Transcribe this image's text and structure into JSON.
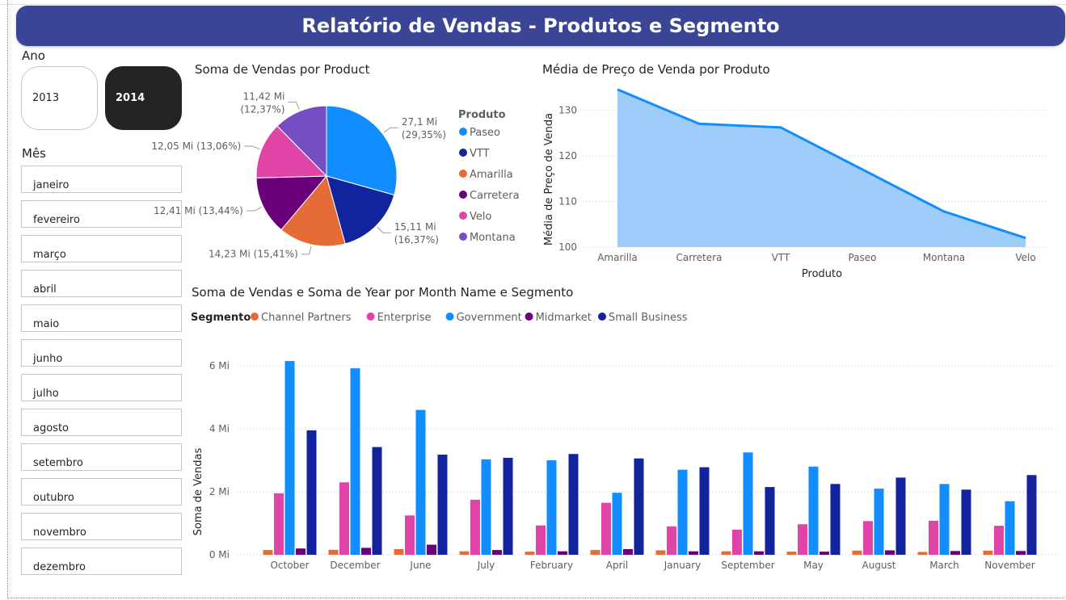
{
  "report_title": "Relatório de Vendas - Produtos e Segmento",
  "colors": {
    "banner": "#3b4596"
  },
  "year_slicer": {
    "title": "Ano",
    "options": [
      {
        "label": "2013",
        "selected": false
      },
      {
        "label": "2014",
        "selected": true
      }
    ]
  },
  "month_slicer": {
    "title": "Mês",
    "items": [
      "janeiro",
      "fevereiro",
      "março",
      "abril",
      "maio",
      "junho",
      "julho",
      "agosto",
      "setembro",
      "outubro",
      "novembro",
      "dezembro"
    ]
  },
  "chart_data": [
    {
      "type": "pie",
      "title": "Soma de Vendas por Product",
      "legend_title": "Produto",
      "legend_position": "right",
      "slices": [
        {
          "name": "Paseo",
          "value": 27.1,
          "label": "27,1 Mi (29,35%)",
          "color": "#118dff"
        },
        {
          "name": "VTT",
          "value": 15.11,
          "label": "15,11 Mi (16,37%)",
          "color": "#12239e"
        },
        {
          "name": "Amarilla",
          "value": 14.23,
          "label": "14,23 Mi (15,41%)",
          "color": "#e66c37"
        },
        {
          "name": "Carretera",
          "value": 12.41,
          "label": "12,41 Mi (13,44%)",
          "color": "#6b007b"
        },
        {
          "name": "Velo",
          "value": 12.05,
          "label": "12,05 Mi (13,06%)",
          "color": "#e044a7"
        },
        {
          "name": "Montana",
          "value": 11.42,
          "label": "11,42 Mi (12,37%)",
          "color": "#744ec2"
        }
      ]
    },
    {
      "type": "area",
      "title": "Média de Preço de Venda por Produto",
      "xlabel": "Produto",
      "ylabel": "Média de Preço de Venda",
      "categories": [
        "Amarilla",
        "Carretera",
        "VTT",
        "Paseo",
        "Montana",
        "Velo"
      ],
      "values": [
        134.5,
        127.0,
        126.2,
        117.0,
        107.8,
        102.0
      ],
      "ylim": [
        100,
        135
      ],
      "yticks": [
        100,
        110,
        120,
        130
      ],
      "grid": true,
      "color": "#118dff"
    },
    {
      "type": "bar",
      "title": "Soma de Vendas e Soma de Year por Month Name e Segmento",
      "legend_title": "Segmento",
      "legend_position": "top-left",
      "ylabel": "Soma de Vendas",
      "xlabel": "",
      "ylim": [
        0,
        6.5
      ],
      "yticks": [
        0,
        2,
        4,
        6
      ],
      "ytick_labels": [
        "0 Mi",
        "2 Mi",
        "4 Mi",
        "6 Mi"
      ],
      "grid": true,
      "categories": [
        "October",
        "December",
        "June",
        "July",
        "February",
        "April",
        "January",
        "September",
        "May",
        "August",
        "March",
        "November"
      ],
      "series": [
        {
          "name": "Channel Partners",
          "color": "#e66c37",
          "values": [
            0.15,
            0.16,
            0.18,
            0.11,
            0.1,
            0.15,
            0.14,
            0.11,
            0.1,
            0.13,
            0.09,
            0.13
          ]
        },
        {
          "name": "Enterprise",
          "color": "#e044a7",
          "values": [
            1.95,
            2.3,
            1.25,
            1.75,
            0.93,
            1.65,
            0.9,
            0.8,
            0.97,
            1.07,
            1.08,
            0.92
          ]
        },
        {
          "name": "Government",
          "color": "#118dff",
          "values": [
            6.15,
            5.92,
            4.6,
            3.03,
            3.0,
            1.97,
            2.7,
            3.25,
            2.8,
            2.1,
            2.25,
            1.7
          ]
        },
        {
          "name": "Midmarket",
          "color": "#6b007b",
          "values": [
            0.2,
            0.22,
            0.32,
            0.15,
            0.11,
            0.18,
            0.11,
            0.11,
            0.1,
            0.14,
            0.12,
            0.12
          ]
        },
        {
          "name": "Small Business",
          "color": "#12239e",
          "values": [
            3.95,
            3.42,
            3.18,
            3.08,
            3.2,
            3.06,
            2.78,
            2.15,
            2.25,
            2.45,
            2.07,
            2.53
          ]
        }
      ]
    }
  ]
}
